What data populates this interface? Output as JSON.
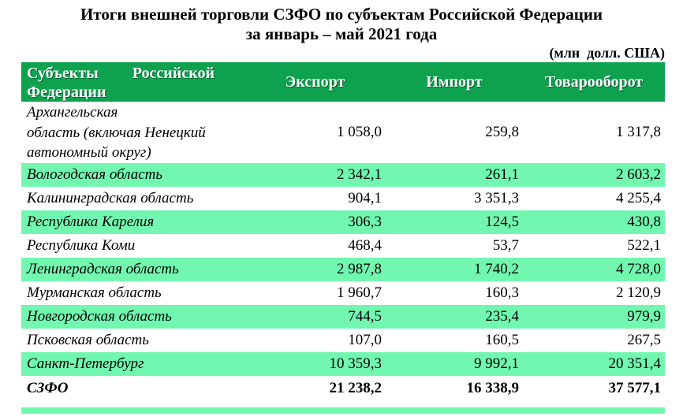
{
  "title": {
    "line1": "Итоги внешней торговли СЗФО по субъектам Российской Федерации",
    "line2": "за январь – май 2021 года"
  },
  "units_label": "(млн  долл. США)",
  "table": {
    "columns": {
      "subjects": "Субъекты Российской Федерации",
      "export": "Экспорт",
      "import": "Импорт",
      "turnover": "Товарооборот"
    },
    "rows": [
      {
        "name": "Архангельская\nобласть (включая Ненецкий\nавтономный округ)",
        "export": "1 058,0",
        "import": "259,8",
        "turnover": "1 317,8",
        "shaded": false,
        "tall": true,
        "total": false
      },
      {
        "name": "Вологодская область",
        "export": "2 342,1",
        "import": "261,1",
        "turnover": "2 603,2",
        "shaded": true,
        "tall": false,
        "total": false
      },
      {
        "name": "Калининградская область",
        "export": "904,1",
        "import": "3 351,3",
        "turnover": "4 255,4",
        "shaded": false,
        "tall": false,
        "total": false
      },
      {
        "name": "Республика Карелия",
        "export": "306,3",
        "import": "124,5",
        "turnover": "430,8",
        "shaded": true,
        "tall": false,
        "total": false
      },
      {
        "name": "Республика Коми",
        "export": "468,4",
        "import": "53,7",
        "turnover": "522,1",
        "shaded": false,
        "tall": false,
        "total": false
      },
      {
        "name": "Ленинградская область",
        "export": "2 987,8",
        "import": "1 740,2",
        "turnover": "4 728,0",
        "shaded": true,
        "tall": false,
        "total": false
      },
      {
        "name": "Мурманская область",
        "export": "1 960,7",
        "import": "160,3",
        "turnover": "2 120,9",
        "shaded": false,
        "tall": false,
        "total": false
      },
      {
        "name": "Новгородская область",
        "export": "744,5",
        "import": "235,4",
        "turnover": "979,9",
        "shaded": true,
        "tall": false,
        "total": false
      },
      {
        "name": "Псковская область",
        "export": "107,0",
        "import": "160,5",
        "turnover": "267,5",
        "shaded": false,
        "tall": false,
        "total": false
      },
      {
        "name": "Санкт-Петербург",
        "export": "10 359,3",
        "import": "9 992,1",
        "turnover": "20 351,4",
        "shaded": true,
        "tall": false,
        "total": false
      },
      {
        "name": "СЗФО",
        "export": "21 238,2",
        "import": "16 338,9",
        "turnover": "37 577,1",
        "shaded": false,
        "tall": false,
        "total": true
      }
    ]
  },
  "colors": {
    "header_green": "#0EA24F",
    "stripe_green": "#71F7AF",
    "header_text": "#FFFFFF",
    "text": "#000000",
    "background": "#FFFFFF"
  }
}
